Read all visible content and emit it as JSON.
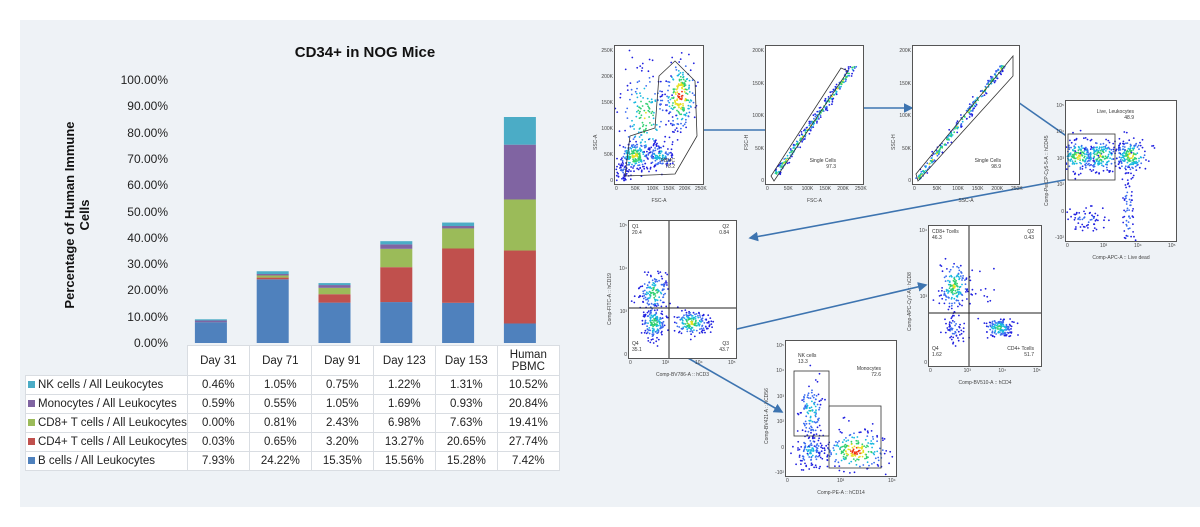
{
  "chart_data": {
    "type": "bar",
    "stacked": true,
    "title": "CD34+ in NOG Mice",
    "xlabel": "",
    "ylabel": "Percentage of Human Immune Cells",
    "ylim": [
      0,
      100
    ],
    "yticks": [
      "0.00%",
      "10.00%",
      "20.00%",
      "30.00%",
      "40.00%",
      "50.00%",
      "60.00%",
      "70.00%",
      "80.00%",
      "90.00%",
      "100.00%"
    ],
    "categories": [
      "Day 31",
      "Day 71",
      "Day 91",
      "Day 123",
      "Day 153",
      "Human PBMC"
    ],
    "grid": false,
    "legend": "data-table",
    "series": [
      {
        "name": "B cells / All Leukocytes",
        "color": "#4f81bd",
        "values": [
          7.93,
          24.22,
          15.35,
          15.56,
          15.28,
          7.42
        ],
        "labels": [
          "7.93%",
          "24.22%",
          "15.35%",
          "15.56%",
          "15.28%",
          "7.42%"
        ]
      },
      {
        "name": "CD4+ T cells / All Leukocytes",
        "color": "#c0504d",
        "values": [
          0.03,
          0.65,
          3.2,
          13.27,
          20.65,
          27.74
        ],
        "labels": [
          "0.03%",
          "0.65%",
          "3.20%",
          "13.27%",
          "20.65%",
          "27.74%"
        ]
      },
      {
        "name": "CD8+ T cells / All Leukocytes",
        "color": "#9bbb59",
        "values": [
          0.0,
          0.81,
          2.43,
          6.98,
          7.63,
          19.41
        ],
        "labels": [
          "0.00%",
          "0.81%",
          "2.43%",
          "6.98%",
          "7.63%",
          "19.41%"
        ]
      },
      {
        "name": "Monocytes / All Leukocytes",
        "color": "#8064a2",
        "values": [
          0.59,
          0.55,
          1.05,
          1.69,
          0.93,
          20.84
        ],
        "labels": [
          "0.59%",
          "0.55%",
          "1.05%",
          "1.69%",
          "0.93%",
          "20.84%"
        ]
      },
      {
        "name": "NK cells / All Leukocytes",
        "color": "#4bacc6",
        "values": [
          0.46,
          1.05,
          0.75,
          1.22,
          1.31,
          10.52
        ],
        "labels": [
          "0.46%",
          "1.05%",
          "0.75%",
          "1.22%",
          "1.31%",
          "10.52%"
        ]
      }
    ]
  },
  "flow": {
    "plots": [
      {
        "id": "pbmc",
        "ylabel": "SSC-A",
        "xlabel": "FSC-A",
        "gates": [
          {
            "name": "PBMC",
            "value": "78.2"
          }
        ],
        "xticks": [
          "0",
          "50K",
          "100K",
          "150K",
          "200K",
          "250K"
        ],
        "yticks": [
          "0",
          "50K",
          "100K",
          "150K",
          "200K",
          "250K"
        ]
      },
      {
        "id": "singlets1",
        "ylabel": "FSC-H",
        "xlabel": "FSC-A",
        "gates": [
          {
            "name": "Single Cells",
            "value": "97.3"
          }
        ],
        "xticks": [
          "0",
          "50K",
          "100K",
          "150K",
          "200K",
          "250K"
        ],
        "yticks": [
          "0",
          "50K",
          "100K",
          "150K",
          "200K"
        ]
      },
      {
        "id": "singlets2",
        "ylabel": "SSC-H",
        "xlabel": "SSC-A",
        "gates": [
          {
            "name": "Single Cells",
            "value": "98.9"
          }
        ],
        "xticks": [
          "0",
          "50K",
          "100K",
          "150K",
          "200K",
          "250K"
        ],
        "yticks": [
          "0",
          "50K",
          "100K",
          "150K",
          "200K"
        ]
      },
      {
        "id": "live",
        "ylabel": "Comp-PerCP-Cy5-5-A :: hCD45",
        "xlabel": "Comp-APC-A :: Live dead",
        "gates": [
          {
            "name": "Live, Leukocytes",
            "value": "48.9"
          }
        ],
        "xticks": [
          "0",
          "10³",
          "10⁴",
          "10⁵"
        ],
        "yticks": [
          "-10²",
          "0",
          "10²",
          "10³",
          "10⁴",
          "10⁵"
        ]
      },
      {
        "id": "cd19cd3",
        "ylabel": "Comp-FITC-A :: hCD19",
        "xlabel": "Comp-BV786-A :: hCD3",
        "gates": [
          {
            "name": "Q1",
            "value": "20.4"
          },
          {
            "name": "Q2",
            "value": "0.84"
          },
          {
            "name": "Q3",
            "value": "43.7"
          },
          {
            "name": "Q4",
            "value": "35.1"
          }
        ],
        "xticks": [
          "0",
          "10³",
          "10⁴",
          "10⁵"
        ],
        "yticks": [
          "0",
          "10³",
          "10⁴",
          "10⁵"
        ]
      },
      {
        "id": "cd8cd4",
        "ylabel": "Comp-APC-Cy7-A :: hCD8",
        "xlabel": "Comp-BV510-A :: hCD4",
        "gates": [
          {
            "name": "CD8+ Tcells",
            "value": "46.3"
          },
          {
            "name": "Q2",
            "value": "0.43"
          },
          {
            "name": "CD4+ Tcells",
            "value": "51.7"
          },
          {
            "name": "Q4",
            "value": "1.62"
          }
        ],
        "xticks": [
          "0",
          "10³",
          "10⁴",
          "10⁵"
        ],
        "yticks": [
          "0",
          "10³",
          "10⁴"
        ]
      },
      {
        "id": "nkmono",
        "ylabel": "Comp-BV421-A :: hCD56",
        "xlabel": "Comp-PE-A :: hCD14",
        "gates": [
          {
            "name": "NK cells",
            "value": "13.3"
          },
          {
            "name": "Monocytes",
            "value": "72.6"
          }
        ],
        "xticks": [
          "0",
          "10³",
          "10⁴"
        ],
        "yticks": [
          "-10²",
          "0",
          "10²",
          "10³",
          "10⁴",
          "10⁵"
        ]
      }
    ],
    "arrow_color": "#3d74b0"
  }
}
